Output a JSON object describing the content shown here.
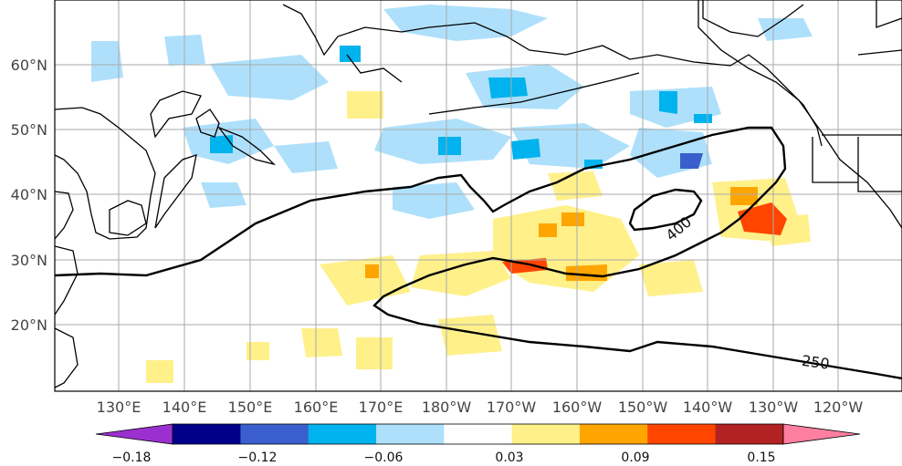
{
  "map": {
    "lat_ticks": [
      "60°N",
      "50°N",
      "40°N",
      "30°N",
      "20°N"
    ],
    "lon_ticks": [
      "130°E",
      "140°E",
      "150°E",
      "160°E",
      "170°E",
      "180°W",
      "170°W",
      "160°W",
      "150°W",
      "140°W",
      "130°W",
      "120°W"
    ],
    "contour_labels": [
      "400",
      "250"
    ]
  },
  "colorbar": {
    "ticks": [
      "−0.18",
      "−0.12",
      "−0.06",
      "0.03",
      "0.09",
      "0.15"
    ],
    "colors": [
      "#9b30d0",
      "#00008b",
      "#3a5fcd",
      "#00b2ee",
      "#aee0fb",
      "#ffffff",
      "#fff08a",
      "#ffa500",
      "#ff4500",
      "#b22222",
      "#ff7fa0"
    ]
  },
  "colors": {
    "light_blue": "#aee0fb",
    "blue": "#00b2ee",
    "dark_blue": "#3a5fcd",
    "light_yellow": "#fff08a",
    "orange": "#ffa500",
    "red_orange": "#ff4500",
    "grid": "#aaaaaa",
    "coast": "#000000"
  }
}
